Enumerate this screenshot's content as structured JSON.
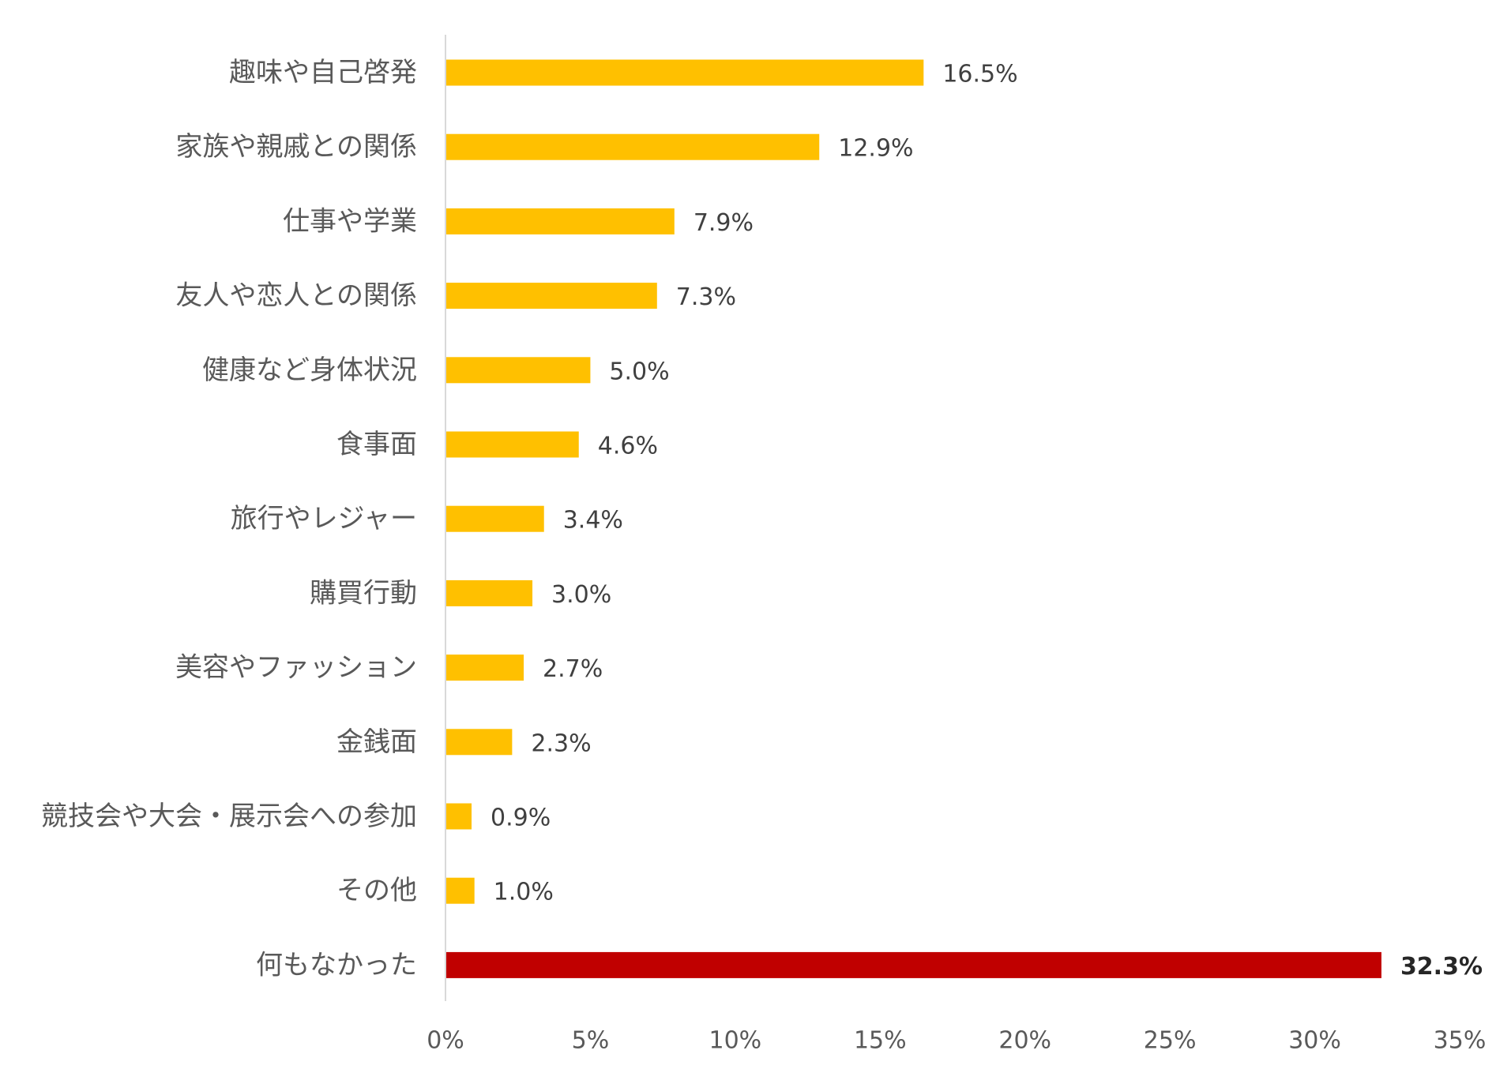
{
  "chart_data": {
    "type": "bar",
    "orientation": "horizontal",
    "categories": [
      "趣味や自己啓発",
      "家族や親戚との関係",
      "仕事や学業",
      "友人や恋人との関係",
      "健康など身体状況",
      "食事面",
      "旅行やレジャー",
      "購買行動",
      "美容やファッション",
      "金銭面",
      "競技会や大会・展示会への参加",
      "その他",
      "何もなかった"
    ],
    "values": [
      16.5,
      12.9,
      7.9,
      7.3,
      5.0,
      4.6,
      3.4,
      3.0,
      2.7,
      2.3,
      0.9,
      1.0,
      32.3
    ],
    "value_labels": [
      "16.5%",
      "12.9%",
      "7.9%",
      "7.3%",
      "5.0%",
      "4.6%",
      "3.4%",
      "3.0%",
      "2.7%",
      "2.3%",
      "0.9%",
      "1.0%",
      "32.3%"
    ],
    "bar_colors": [
      "#FFC000",
      "#FFC000",
      "#FFC000",
      "#FFC000",
      "#FFC000",
      "#FFC000",
      "#FFC000",
      "#FFC000",
      "#FFC000",
      "#FFC000",
      "#FFC000",
      "#FFC000",
      "#C00000"
    ],
    "highlight_index": 12,
    "xlim": [
      0,
      35
    ],
    "xticks": [
      0,
      5,
      10,
      15,
      20,
      25,
      30,
      35
    ],
    "xtick_labels": [
      "0%",
      "5%",
      "10%",
      "15%",
      "20%",
      "25%",
      "30%",
      "35%"
    ],
    "title": "",
    "xlabel": "",
    "ylabel": "",
    "grid": false,
    "legend": "none",
    "axis_color": "#D9D9D9"
  }
}
